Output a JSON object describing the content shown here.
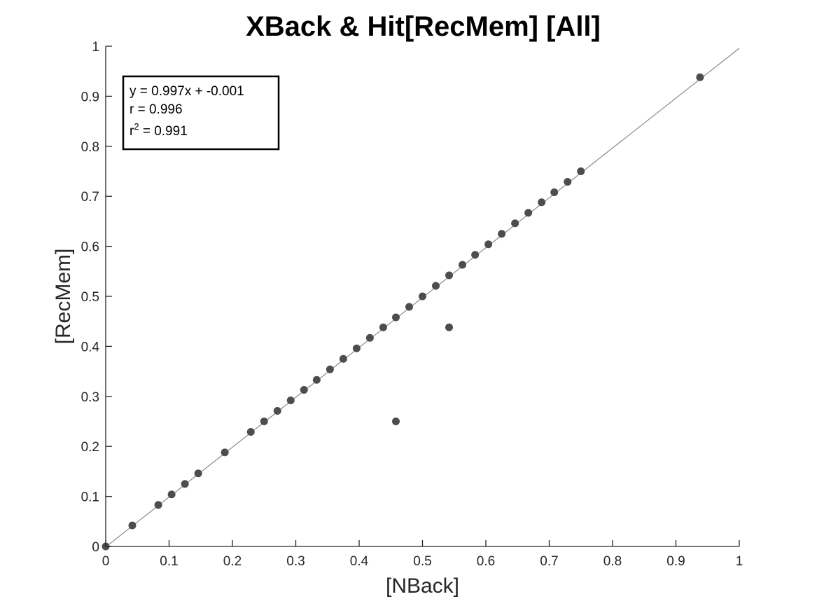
{
  "chart_data": {
    "type": "scatter",
    "title": "XBack & Hit[RecMem] [All]",
    "xlabel": "[NBack]",
    "ylabel": "[RecMem]",
    "xlim": [
      0,
      1
    ],
    "ylim": [
      0,
      1
    ],
    "x_ticks": [
      "0",
      "0.1",
      "0.2",
      "0.3",
      "0.4",
      "0.5",
      "0.6",
      "0.7",
      "0.8",
      "0.9",
      "1"
    ],
    "y_ticks": [
      "0",
      "0.1",
      "0.2",
      "0.3",
      "0.4",
      "0.5",
      "0.6",
      "0.7",
      "0.8",
      "0.9",
      "1"
    ],
    "grid": false,
    "series": [
      {
        "marker_color": "#4d4d4d",
        "points": [
          {
            "x": 0,
            "y": 0
          },
          {
            "x": 0.042,
            "y": 0.042
          },
          {
            "x": 0.083,
            "y": 0.083
          },
          {
            "x": 0.104,
            "y": 0.104
          },
          {
            "x": 0.125,
            "y": 0.125
          },
          {
            "x": 0.146,
            "y": 0.146
          },
          {
            "x": 0.188,
            "y": 0.188
          },
          {
            "x": 0.229,
            "y": 0.229
          },
          {
            "x": 0.25,
            "y": 0.25
          },
          {
            "x": 0.271,
            "y": 0.271
          },
          {
            "x": 0.292,
            "y": 0.292
          },
          {
            "x": 0.313,
            "y": 0.313
          },
          {
            "x": 0.333,
            "y": 0.333
          },
          {
            "x": 0.354,
            "y": 0.354
          },
          {
            "x": 0.375,
            "y": 0.375
          },
          {
            "x": 0.396,
            "y": 0.396
          },
          {
            "x": 0.417,
            "y": 0.417
          },
          {
            "x": 0.438,
            "y": 0.438
          },
          {
            "x": 0.458,
            "y": 0.458
          },
          {
            "x": 0.479,
            "y": 0.479
          },
          {
            "x": 0.5,
            "y": 0.5
          },
          {
            "x": 0.521,
            "y": 0.521
          },
          {
            "x": 0.542,
            "y": 0.542
          },
          {
            "x": 0.563,
            "y": 0.563
          },
          {
            "x": 0.583,
            "y": 0.583
          },
          {
            "x": 0.604,
            "y": 0.604
          },
          {
            "x": 0.625,
            "y": 0.625
          },
          {
            "x": 0.646,
            "y": 0.646
          },
          {
            "x": 0.667,
            "y": 0.667
          },
          {
            "x": 0.688,
            "y": 0.688
          },
          {
            "x": 0.708,
            "y": 0.708
          },
          {
            "x": 0.729,
            "y": 0.729
          },
          {
            "x": 0.75,
            "y": 0.75
          },
          {
            "x": 0.938,
            "y": 0.938
          },
          {
            "x": 0.542,
            "y": 0.438
          },
          {
            "x": 0.458,
            "y": 0.25
          }
        ]
      }
    ],
    "fit_line": {
      "slope": 0.997,
      "intercept": -0.001,
      "x_range": [
        0,
        1
      ],
      "color": "#8c8c8c"
    },
    "annotation": {
      "position": "top-left",
      "line1": "y = 0.997x + -0.001",
      "line2": "r = 0.996",
      "line3_base": "r",
      "line3_sup": "2",
      "line3_rest": " = 0.991"
    }
  }
}
